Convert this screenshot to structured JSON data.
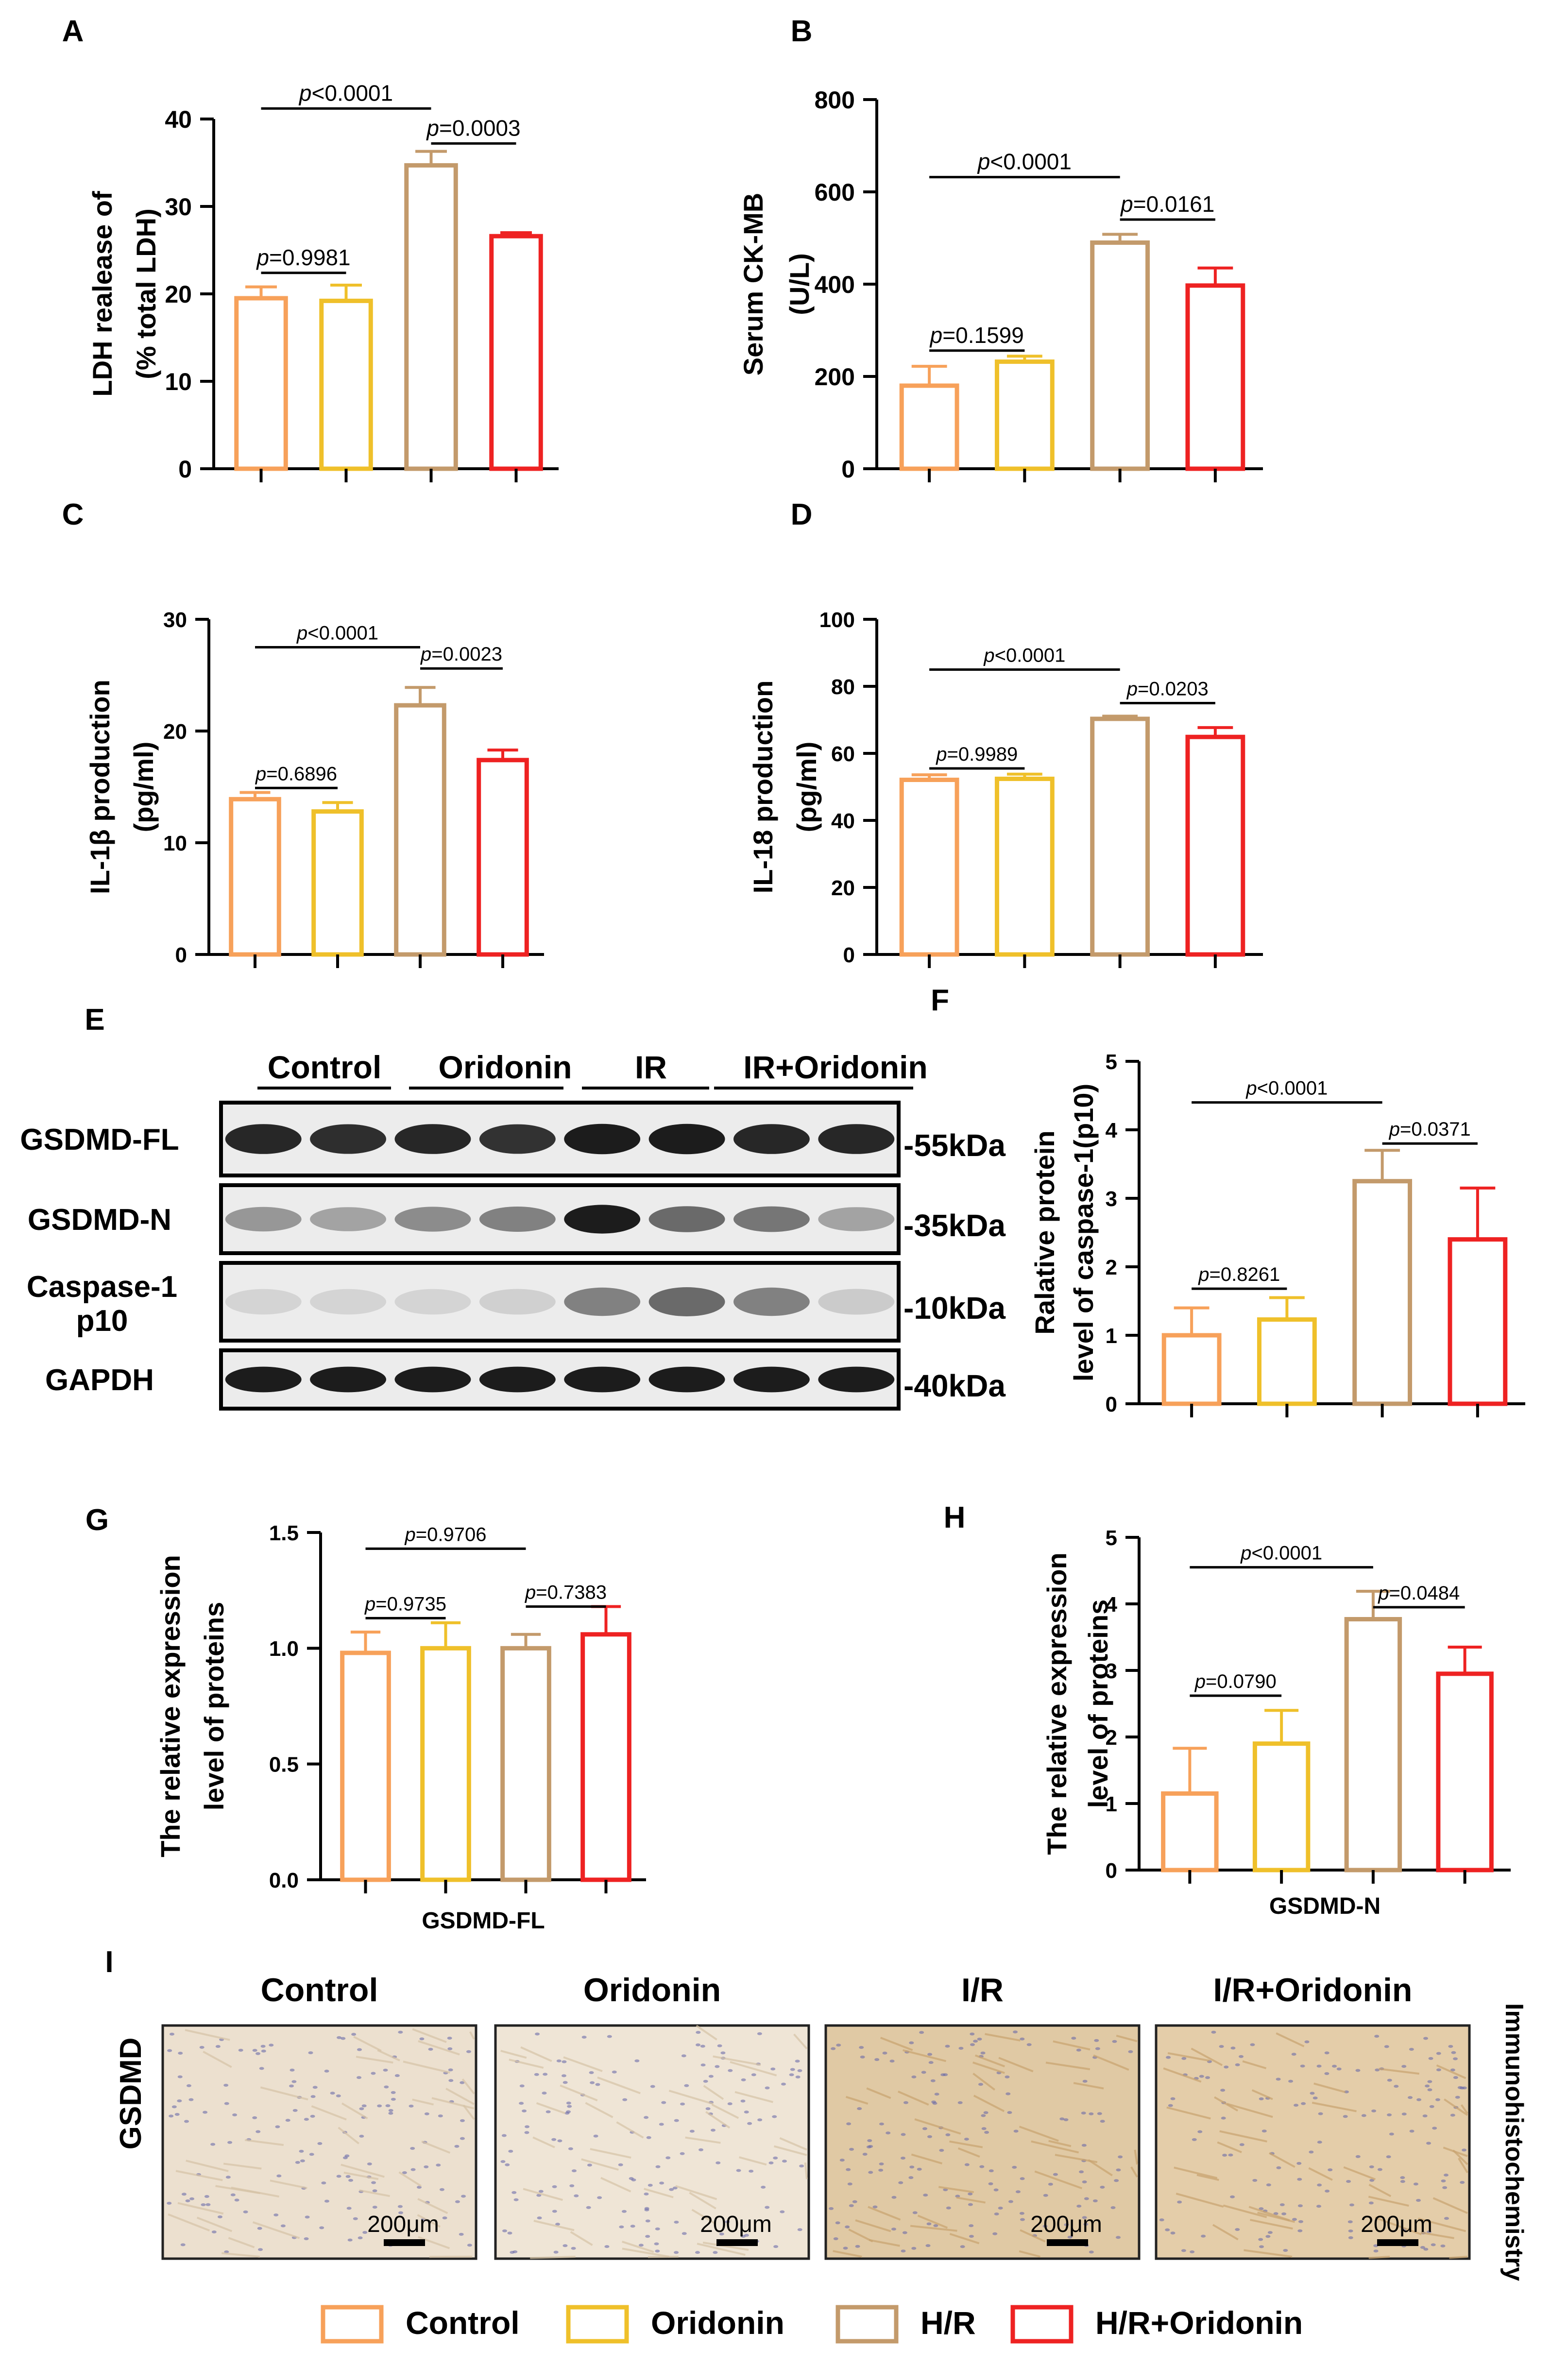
{
  "legend": [
    {
      "label": "Control",
      "color": "#F7A15A"
    },
    {
      "label": "Oridonin",
      "color": "#EFC02A"
    },
    {
      "label": "H/R",
      "color": "#C39A6B"
    },
    {
      "label": "H/R+Oridonin",
      "color": "#EE2222"
    }
  ],
  "chart_data": [
    {
      "panel": "A",
      "type": "bar",
      "categories": [
        "Control",
        "Oridonin",
        "H/R",
        "H/R+Oridonin"
      ],
      "values": [
        19.5,
        19.2,
        34.7,
        26.6
      ],
      "errors": [
        1.3,
        1.8,
        1.6,
        0.4
      ],
      "ylabel_lines": [
        "LDH realease of",
        "(%  total LDH)"
      ],
      "ylim": [
        0,
        40
      ],
      "yticks": [
        0,
        10,
        20,
        30,
        40
      ],
      "xlabel": "",
      "comparisons": [
        {
          "from": 0,
          "to": 1,
          "label": "p=0.9981",
          "level": 22.4
        },
        {
          "from": 0,
          "to": 2,
          "label": "p<0.0001",
          "level": 41.2
        },
        {
          "from": 2,
          "to": 3,
          "label": "p=0.0003",
          "level": 37.2
        }
      ]
    },
    {
      "panel": "B",
      "type": "bar",
      "categories": [
        "Control",
        "Oridonin",
        "H/R",
        "H/R+Oridonin"
      ],
      "values": [
        180,
        232,
        490,
        397
      ],
      "errors": [
        42,
        12,
        18,
        38
      ],
      "ylabel_lines": [
        "Serum CK-MB",
        "(U/L)"
      ],
      "ylim": [
        0,
        800
      ],
      "yticks": [
        0,
        200,
        400,
        600,
        800
      ],
      "xlabel": "",
      "comparisons": [
        {
          "from": 0,
          "to": 1,
          "label": "p=0.1599",
          "level": 256
        },
        {
          "from": 0,
          "to": 2,
          "label": "p<0.0001",
          "level": 632
        },
        {
          "from": 2,
          "to": 3,
          "label": "p=0.0161",
          "level": 540
        }
      ]
    },
    {
      "panel": "C",
      "type": "bar",
      "categories": [
        "Control",
        "Oridonin",
        "H/R",
        "H/R+Oridonin"
      ],
      "values": [
        13.9,
        12.8,
        22.3,
        17.4
      ],
      "errors": [
        0.6,
        0.8,
        1.6,
        0.9
      ],
      "ylabel_lines": [
        "IL-1β production",
        "(pg/ml)"
      ],
      "ylim": [
        0,
        30
      ],
      "yticks": [
        0,
        10,
        20,
        30
      ],
      "xlabel": "",
      "comparisons": [
        {
          "from": 0,
          "to": 1,
          "label": "p=0.6896",
          "level": 14.9
        },
        {
          "from": 0,
          "to": 2,
          "label": "p<0.0001",
          "level": 27.5
        },
        {
          "from": 2,
          "to": 3,
          "label": "p=0.0023",
          "level": 25.6
        }
      ]
    },
    {
      "panel": "D",
      "type": "bar",
      "categories": [
        "Control",
        "Oridonin",
        "H/R",
        "H/R+Oridonin"
      ],
      "values": [
        52.1,
        52.4,
        70.3,
        64.9
      ],
      "errors": [
        1.5,
        1.4,
        0.8,
        2.8
      ],
      "ylabel_lines": [
        "IL-18 production",
        "(pg/ml)"
      ],
      "ylim": [
        0,
        100
      ],
      "yticks": [
        0,
        20,
        40,
        60,
        80,
        100
      ],
      "xlabel": "",
      "comparisons": [
        {
          "from": 0,
          "to": 1,
          "label": "p=0.9989",
          "level": 55.5
        },
        {
          "from": 0,
          "to": 2,
          "label": "p<0.0001",
          "level": 85
        },
        {
          "from": 2,
          "to": 3,
          "label": "p=0.0203",
          "level": 75
        }
      ]
    },
    {
      "panel": "F",
      "type": "bar",
      "categories": [
        "Control",
        "Oridonin",
        "H/R",
        "H/R+Oridonin"
      ],
      "values": [
        1.0,
        1.23,
        3.25,
        2.4
      ],
      "errors": [
        0.4,
        0.32,
        0.45,
        0.75
      ],
      "ylabel_lines": [
        "Ralative protein",
        "level of caspase-1(p10)"
      ],
      "ylim": [
        0,
        5
      ],
      "yticks": [
        0,
        1,
        2,
        3,
        4,
        5
      ],
      "xlabel": "",
      "comparisons": [
        {
          "from": 0,
          "to": 1,
          "label": "p=0.8261",
          "level": 1.68
        },
        {
          "from": 0,
          "to": 2,
          "label": "p<0.0001",
          "level": 4.4
        },
        {
          "from": 2,
          "to": 3,
          "label": "p=0.0371",
          "level": 3.8
        }
      ]
    },
    {
      "panel": "G",
      "type": "bar",
      "categories": [
        "Control",
        "Oridonin",
        "H/R",
        "H/R+Oridonin"
      ],
      "values": [
        0.98,
        1.0,
        1.0,
        1.06
      ],
      "errors": [
        0.09,
        0.11,
        0.06,
        0.12
      ],
      "ylabel_lines": [
        "The relative expression",
        "level of proteins"
      ],
      "ylim": [
        0,
        1.5
      ],
      "yticks": [
        0.0,
        0.5,
        1.0,
        1.5
      ],
      "tick_decimals": 1,
      "xlabel": "GSDMD-FL",
      "comparisons": [
        {
          "from": 0,
          "to": 1,
          "label": "p=0.9735",
          "level": 1.13
        },
        {
          "from": 0,
          "to": 2,
          "label": "p=0.9706",
          "level": 1.43
        },
        {
          "from": 2,
          "to": 3,
          "label": "p=0.7383",
          "level": 1.18
        }
      ]
    },
    {
      "panel": "H",
      "type": "bar",
      "categories": [
        "Control",
        "Oridonin",
        "H/R",
        "H/R+Oridonin"
      ],
      "values": [
        1.15,
        1.9,
        3.77,
        2.95
      ],
      "errors": [
        0.68,
        0.5,
        0.42,
        0.4
      ],
      "ylabel_lines": [
        "The relative expression",
        "level of proteins"
      ],
      "ylim": [
        0,
        5
      ],
      "yticks": [
        0,
        1,
        2,
        3,
        4,
        5
      ],
      "xlabel": "GSDMD-N",
      "comparisons": [
        {
          "from": 0,
          "to": 1,
          "label": "p=0.0790",
          "level": 2.62
        },
        {
          "from": 0,
          "to": 2,
          "label": "p<0.0001",
          "level": 4.55
        },
        {
          "from": 2,
          "to": 3,
          "label": "p=0.0484",
          "level": 3.95
        }
      ]
    }
  ],
  "western_blot": {
    "panel": "E",
    "groups": [
      "Control",
      "Oridonin",
      "IR",
      "IR+Oridonin"
    ],
    "rows": [
      {
        "label": "GSDMD-FL",
        "size": "-55kDa",
        "intensities": [
          0.85,
          0.82,
          0.85,
          0.8,
          0.9,
          0.9,
          0.85,
          0.85
        ]
      },
      {
        "label": "GSDMD-N",
        "size": "-35kDa",
        "intensities": [
          0.35,
          0.3,
          0.4,
          0.45,
          0.9,
          0.55,
          0.5,
          0.3
        ]
      },
      {
        "label": "Caspase-1",
        "label2": "p10",
        "size": "-10kDa",
        "intensities": [
          0.08,
          0.08,
          0.08,
          0.1,
          0.45,
          0.55,
          0.45,
          0.12
        ]
      },
      {
        "label": "GAPDH",
        "size": "-40kDa",
        "intensities": [
          0.9,
          0.9,
          0.9,
          0.9,
          0.9,
          0.9,
          0.9,
          0.9
        ]
      }
    ]
  },
  "ihc": {
    "panel": "I",
    "row_label": "GSDMD",
    "side_label": "Immunohistochemistry",
    "scale_label": "200μm",
    "titles": [
      "Control",
      "Oridonin",
      "I/R",
      "I/R+Oridonin"
    ]
  }
}
